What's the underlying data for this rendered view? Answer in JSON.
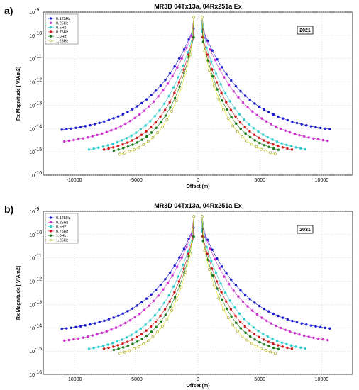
{
  "chart_data": [
    {
      "type": "scatter",
      "panel_label": "a)",
      "title": "MR3D 04Tx13a, 04Rx251a  Ex",
      "xlabel": "Offset (m)",
      "ylabel": "Rx  Magnitude [ V/Am2]",
      "xlim": [
        -12500,
        12500
      ],
      "ylim_exponent": [
        -16,
        -9
      ],
      "y_scale": "log",
      "x_ticks": [
        -10000,
        -5000,
        0,
        5000,
        10000
      ],
      "y_ticks": [
        "10",
        "10",
        "10",
        "10",
        "10",
        "10",
        "10",
        "10"
      ],
      "y_tick_exponents": [
        "-9",
        "-10",
        "-11",
        "-12",
        "-13",
        "-14",
        "-15",
        "-16"
      ],
      "grid": true,
      "legend_position": "top-left",
      "annotation": "2021",
      "series": [
        {
          "name": "0.125Hz",
          "color": "#1a1acc",
          "marker": "circle-filled",
          "max_offset": 11000,
          "end_exponent": -14.05
        },
        {
          "name": "0.25Hz",
          "color": "#cc33cc",
          "marker": "circle-filled",
          "max_offset": 10800,
          "end_exponent": -14.55
        },
        {
          "name": "0.5Hz",
          "color": "#33cccc",
          "marker": "circle-filled",
          "max_offset": 8800,
          "end_exponent": -14.9
        },
        {
          "name": "0.75Hz",
          "color": "#cc1a1a",
          "marker": "circle-filled",
          "max_offset": 7600,
          "end_exponent": -14.9
        },
        {
          "name": "1.0Hz",
          "color": "#1a7a1a",
          "marker": "circle-filled",
          "max_offset": 6800,
          "end_exponent": -14.95
        },
        {
          "name": "1.25Hz",
          "color": "#e6e619",
          "marker": "circle-open",
          "max_offset": 6300,
          "end_exponent": -15.1
        }
      ]
    },
    {
      "type": "scatter",
      "panel_label": "b)",
      "title": "MR3D 04Tx13a, 04Rx251a  Ex",
      "xlabel": "Offset (m)",
      "ylabel": "Rx  Magnitude [ V/Am2]",
      "xlim": [
        -12500,
        12500
      ],
      "ylim_exponent": [
        -16,
        -9
      ],
      "y_scale": "log",
      "x_ticks": [
        -10000,
        -5000,
        0,
        5000,
        10000
      ],
      "y_ticks": [
        "10",
        "10",
        "10",
        "10",
        "10",
        "10",
        "10",
        "10"
      ],
      "y_tick_exponents": [
        "-9",
        "-10",
        "-11",
        "-12",
        "-13",
        "-14",
        "-15",
        "-16"
      ],
      "grid": true,
      "legend_position": "top-left",
      "annotation": "2031",
      "series": [
        {
          "name": "0.125Hz",
          "color": "#1a1acc",
          "marker": "circle-filled",
          "max_offset": 11000,
          "end_exponent": -14.05
        },
        {
          "name": "0.25Hz",
          "color": "#cc33cc",
          "marker": "circle-filled",
          "max_offset": 10800,
          "end_exponent": -14.55
        },
        {
          "name": "0.5Hz",
          "color": "#33cccc",
          "marker": "circle-filled",
          "max_offset": 8800,
          "end_exponent": -14.9
        },
        {
          "name": "0.75Hz",
          "color": "#cc1a1a",
          "marker": "circle-filled",
          "max_offset": 7600,
          "end_exponent": -14.9
        },
        {
          "name": "1.0Hz",
          "color": "#1a7a1a",
          "marker": "circle-filled",
          "max_offset": 6800,
          "end_exponent": -14.95
        },
        {
          "name": "1.25Hz",
          "color": "#e6e619",
          "marker": "circle-open",
          "max_offset": 6300,
          "end_exponent": -15.1
        }
      ]
    }
  ]
}
